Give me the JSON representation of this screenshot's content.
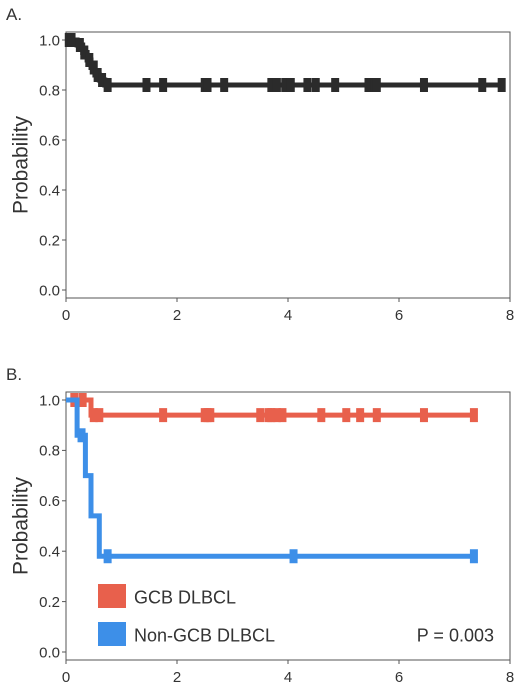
{
  "chart_data": [
    {
      "type": "line",
      "panel_label": "A.",
      "ylabel": "Probability",
      "xlabel": "",
      "xlim": [
        0,
        8
      ],
      "ylim": [
        0,
        1.0
      ],
      "x_ticks": [
        "0",
        "2",
        "4",
        "6",
        "8"
      ],
      "y_ticks": [
        "0.0",
        "0.2",
        "0.4",
        "0.6",
        "0.8",
        "1.0"
      ],
      "grid": false,
      "series": [
        {
          "color": "#2b2b2b",
          "step": [
            [
              0,
              1.0
            ],
            [
              0.2,
              1.0
            ],
            [
              0.2,
              0.98
            ],
            [
              0.3,
              0.98
            ],
            [
              0.3,
              0.95
            ],
            [
              0.38,
              0.95
            ],
            [
              0.38,
              0.92
            ],
            [
              0.45,
              0.92
            ],
            [
              0.45,
              0.89
            ],
            [
              0.52,
              0.89
            ],
            [
              0.52,
              0.86
            ],
            [
              0.6,
              0.86
            ],
            [
              0.6,
              0.84
            ],
            [
              0.7,
              0.84
            ],
            [
              0.7,
              0.82
            ],
            [
              7.9,
              0.82
            ]
          ],
          "censored": [
            0.05,
            0.1,
            0.25,
            0.33,
            0.42,
            0.5,
            0.57,
            0.65,
            0.75,
            1.45,
            1.75,
            2.5,
            2.55,
            2.85,
            3.7,
            3.8,
            3.95,
            4.05,
            4.35,
            4.5,
            4.85,
            5.45,
            5.55,
            5.6,
            6.45,
            7.5,
            7.85
          ]
        }
      ]
    },
    {
      "type": "line",
      "panel_label": "B.",
      "ylabel": "Probability",
      "xlabel": "",
      "xlim": [
        0,
        8
      ],
      "ylim": [
        0,
        1.0
      ],
      "x_ticks": [
        "0",
        "2",
        "4",
        "6",
        "8"
      ],
      "y_ticks": [
        "0.0",
        "0.2",
        "0.4",
        "0.6",
        "0.8",
        "1.0"
      ],
      "grid": false,
      "legend_position": "bottom-left",
      "annotation": "P = 0.003",
      "series": [
        {
          "name": "GCB DLBCL",
          "color": "#e8604c",
          "step": [
            [
              0,
              1.0
            ],
            [
              0.45,
              1.0
            ],
            [
              0.45,
              0.94
            ],
            [
              7.4,
              0.94
            ]
          ],
          "censored": [
            0.15,
            0.3,
            0.5,
            0.6,
            1.75,
            2.5,
            2.55,
            2.6,
            3.5,
            3.65,
            3.7,
            3.8,
            3.9,
            4.6,
            5.05,
            5.3,
            5.6,
            6.45,
            7.35
          ]
        },
        {
          "name": "Non-GCB DLBCL",
          "color": "#3d8fe8",
          "step": [
            [
              0,
              1.0
            ],
            [
              0.2,
              1.0
            ],
            [
              0.2,
              0.86
            ],
            [
              0.35,
              0.86
            ],
            [
              0.35,
              0.7
            ],
            [
              0.45,
              0.7
            ],
            [
              0.45,
              0.54
            ],
            [
              0.6,
              0.54
            ],
            [
              0.6,
              0.38
            ],
            [
              7.4,
              0.38
            ]
          ],
          "censored": [
            0.28,
            0.75,
            4.1,
            7.35
          ]
        }
      ]
    }
  ]
}
